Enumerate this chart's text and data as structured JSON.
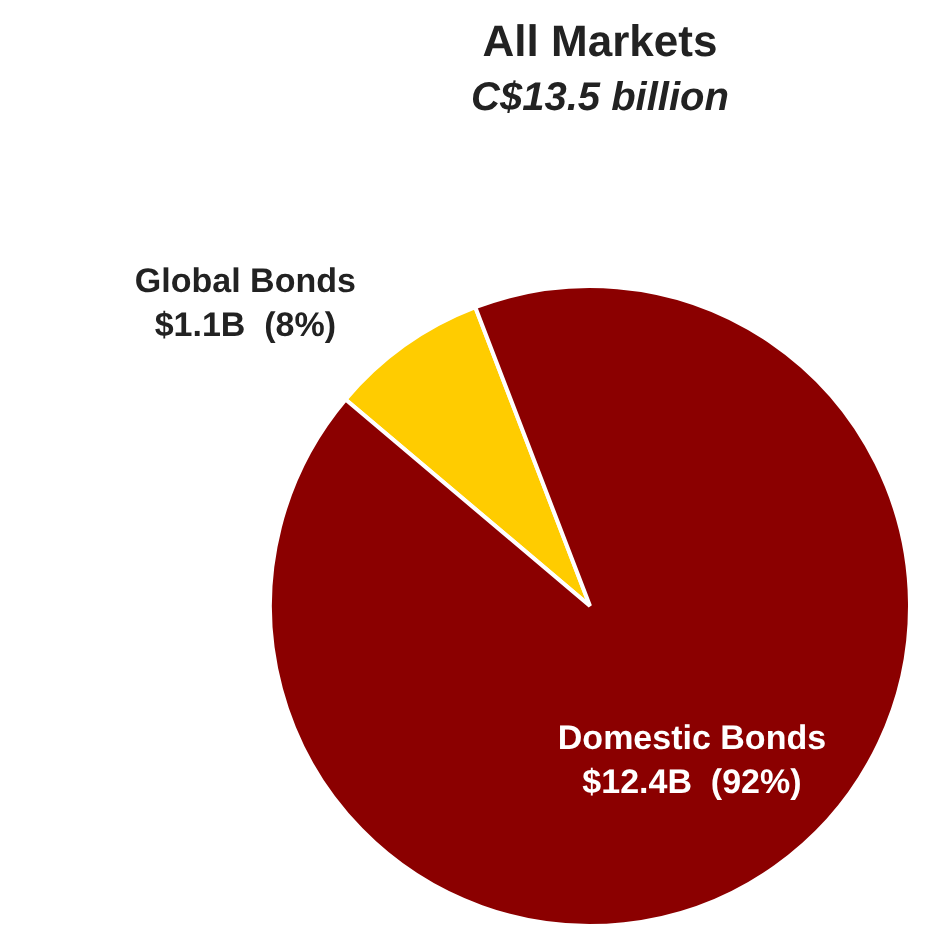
{
  "chart_data": {
    "type": "pie",
    "title": "All Markets",
    "subtitle": "C$13.5 billion",
    "categories": [
      "Global Bonds",
      "Domestic Bonds"
    ],
    "values": [
      8,
      92
    ],
    "value_labels": [
      "$1.1B  (8%)",
      "$12.4B  (92%)"
    ],
    "colors": [
      "#ffcc00",
      "#8b0000"
    ]
  }
}
